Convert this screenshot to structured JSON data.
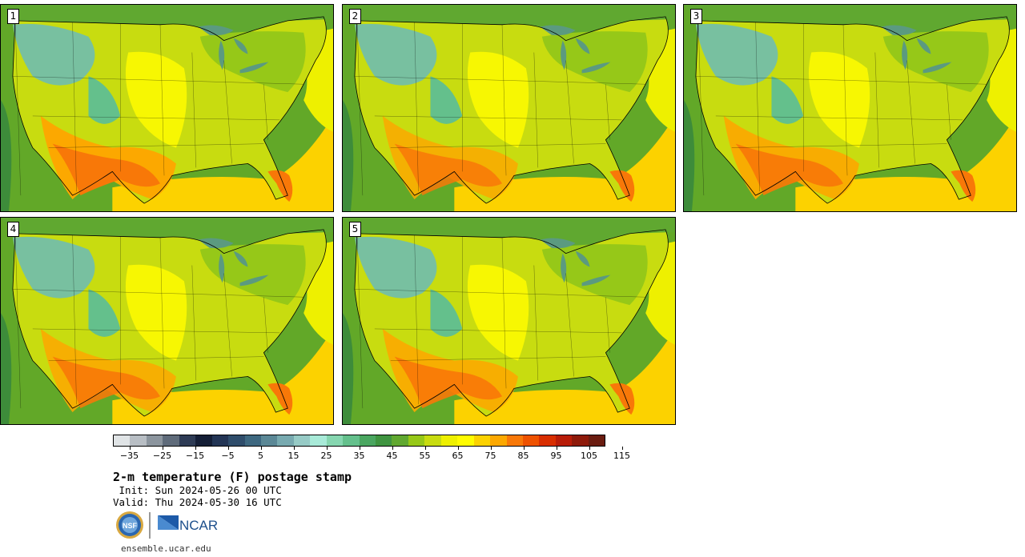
{
  "panels": [
    {
      "number": "1",
      "warmth": 1.0
    },
    {
      "number": "2",
      "warmth": 0.7
    },
    {
      "number": "3",
      "warmth": 0.85
    },
    {
      "number": "4",
      "warmth": 0.75
    },
    {
      "number": "5",
      "warmth": 0.8
    }
  ],
  "colorbar": {
    "colors": [
      "#e0e4e6",
      "#b8bec4",
      "#8c959e",
      "#5f6b7a",
      "#2e3b55",
      "#141e36",
      "#233555",
      "#2f4d6b",
      "#3e6880",
      "#5b8896",
      "#78aab0",
      "#97cbc6",
      "#a8ead8",
      "#86d6b0",
      "#64c08c",
      "#4aa660",
      "#3f9440",
      "#60a830",
      "#96c818",
      "#c8dc10",
      "#eef000",
      "#fffc00",
      "#fcd200",
      "#fca800",
      "#f87808",
      "#ee5200",
      "#d82e00",
      "#b81c08",
      "#8e1a0a",
      "#6a1c10"
    ],
    "tick_labels": [
      "−35",
      "−25",
      "−15",
      "−5",
      "5",
      "15",
      "25",
      "35",
      "45",
      "55",
      "65",
      "75",
      "85",
      "95",
      "105",
      "115"
    ],
    "min": -40,
    "max": 120
  },
  "title": "2-m temperature (F) postage stamp",
  "init": " Init: Sun 2024-05-26 00 UTC",
  "valid": "Valid: Thu 2024-05-30 16 UTC",
  "logos": {
    "nsf": "NSF",
    "ncar": "NCAR"
  },
  "website": "ensemble.ucar.edu"
}
